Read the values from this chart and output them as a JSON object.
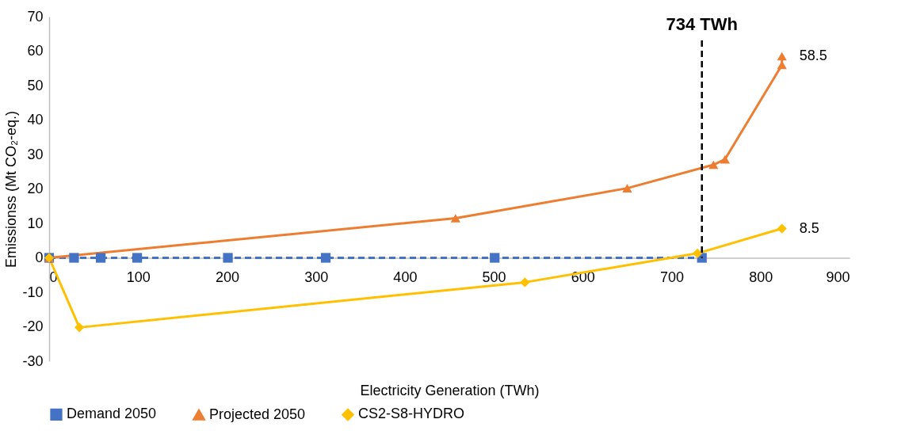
{
  "chart_data": {
    "type": "line",
    "xlabel": "Electricity Generation (TWh)",
    "ylabel": "Emissionss (Mt CO₂-eq.)",
    "xlim": [
      0,
      900
    ],
    "xticks": [
      0,
      100,
      200,
      300,
      400,
      500,
      600,
      700,
      800,
      900
    ],
    "ylim": [
      -30,
      70
    ],
    "yticks": [
      -30,
      -20,
      -10,
      0,
      10,
      20,
      30,
      40,
      50,
      60,
      70
    ],
    "grid": false,
    "legend": "bottom",
    "series": [
      {
        "name": "Demand 2050",
        "color": "#4472c4",
        "marker": "square",
        "line_style": "dashed",
        "x": [
          0,
          28,
          58,
          99,
          201,
          311,
          501,
          734
        ],
        "values": [
          0,
          0,
          0,
          0,
          0,
          0,
          0,
          0
        ]
      },
      {
        "name": "Projected 2050",
        "color": "#ed7d31",
        "marker": "triangle",
        "line_style": "solid",
        "x": [
          0,
          457,
          650,
          747,
          760,
          824,
          824
        ],
        "values": [
          0,
          11.5,
          20.2,
          27,
          28.6,
          56,
          58.5
        ]
      },
      {
        "name": "CS2-S8-HYDRO",
        "color": "#ffc000",
        "marker": "diamond",
        "line_style": "solid",
        "x": [
          0,
          34,
          535,
          729,
          824
        ],
        "values": [
          0,
          -20.2,
          -7.1,
          1.3,
          8.5
        ]
      }
    ],
    "ref_lines": [
      {
        "axis": "x",
        "value": 734,
        "label": "734 TWh",
        "color": "#000000",
        "line_style": "dashed"
      }
    ],
    "annotations": [
      {
        "text": "58.5",
        "x": 824,
        "y": 58.5
      },
      {
        "text": "8.5",
        "x": 824,
        "y": 8.5
      }
    ]
  }
}
